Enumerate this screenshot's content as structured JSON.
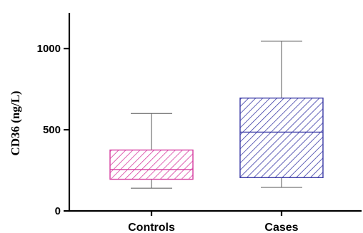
{
  "chart_data": {
    "type": "box",
    "title": "",
    "xlabel": "",
    "ylabel": "CD36 (ng/L)",
    "ylim": [
      0,
      1220
    ],
    "yticks": [
      0,
      500,
      1000
    ],
    "ytick_labels": [
      "0",
      "500",
      "1000"
    ],
    "grid": false,
    "legend": "none",
    "categories": [
      "Controls",
      "Cases"
    ],
    "boxes": [
      {
        "label": "Controls",
        "min": 140,
        "q1": 195,
        "median": 255,
        "q3": 375,
        "max": 600,
        "color": "#d63ca0",
        "hatch": "diagonal"
      },
      {
        "label": "Cases",
        "min": 145,
        "q1": 205,
        "median": 485,
        "q3": 695,
        "max": 1045,
        "color": "#3a3aa6",
        "hatch": "diagonal"
      }
    ]
  }
}
